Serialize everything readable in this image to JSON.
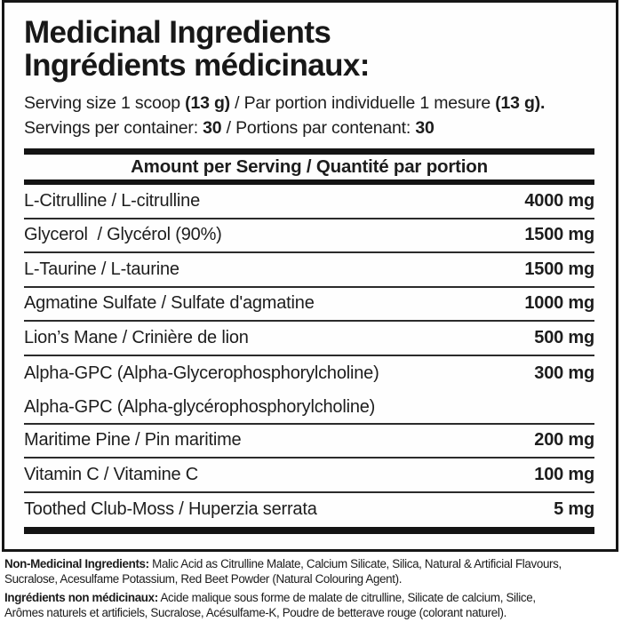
{
  "header": {
    "title_en": "Medicinal Ingredients",
    "title_fr": "Ingrédients médicinaux:"
  },
  "serving": {
    "line1": {
      "t1": "Serving size 1 scoop ",
      "b1": "(13 g)",
      "t2": " / Par portion individuelle 1 mesure ",
      "b2": "(13 g)."
    },
    "line2": {
      "t1": "Servings per container: ",
      "b1": "30",
      "t2": " / Portions par contenant: ",
      "b2": "30"
    }
  },
  "table": {
    "amount_header": "Amount per Serving / Quantité par portion",
    "rows": [
      {
        "name": "L-Citrulline / L-citrulline",
        "value": "4000 mg"
      },
      {
        "name": "Glycerol  / Glycérol (90%)",
        "value": "1500 mg"
      },
      {
        "name": "L-Taurine / L-taurine",
        "value": "1500 mg"
      },
      {
        "name": "Agmatine Sulfate / Sulfate d'agmatine",
        "value": "1000 mg"
      },
      {
        "name": "Lion’s Mane / Crinière de lion",
        "value": "500 mg"
      },
      {
        "name": "Alpha-GPC (Alpha-Glycerophosphorylcholine)",
        "name_fr": "Alpha-GPC (Alpha-glycérophosphorylcholine)",
        "value": "300 mg"
      },
      {
        "name": "Maritime Pine / Pin maritime",
        "value": "200 mg"
      },
      {
        "name": "Vitamin C / Vitamine C",
        "value": "100 mg"
      },
      {
        "name": "Toothed Club-Moss / Huperzia serrata",
        "value": "5 mg"
      }
    ]
  },
  "footnotes": {
    "en_bold": "Non-Medicinal Ingredients:",
    "en_line1_rest": " Malic Acid as Citrulline Malate, Calcium Silicate, Silica, Natural & Artificial Flavours,",
    "en_line2": "Sucralose, Acesulfame Potassium, Red Beet Powder (Natural Colouring Agent).",
    "fr_bold": "Ingrédients non médicinaux:",
    "fr_line1_rest": " Acide malique sous forme de malate de citrulline, Silicate de calcium, Silice,",
    "fr_line2": "Arômes naturels et artificiels, Sucralose, Acésulfame-K, Poudre de betterave rouge (colorant naturel)."
  },
  "colors": {
    "ink": "#1d1d1d",
    "bar": "#141414",
    "separator": "#2b2b2b",
    "background": "#ffffff"
  }
}
